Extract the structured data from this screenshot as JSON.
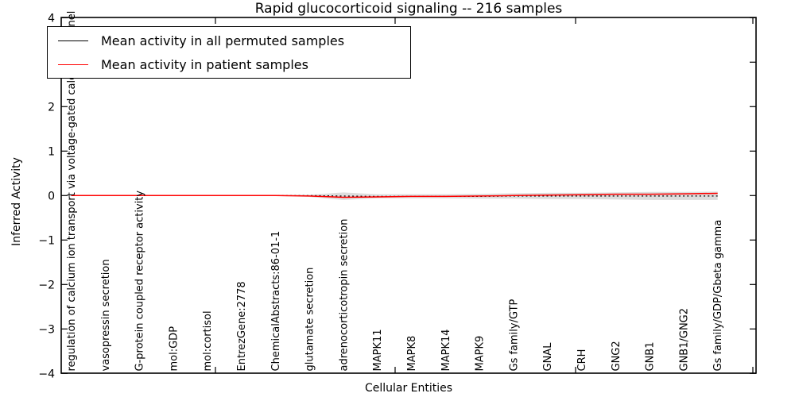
{
  "figure": {
    "title": "Rapid glucocorticoid signaling -- 216 samples",
    "xlabel": "Cellular Entities",
    "ylabel": "Inferred Activity"
  },
  "legend": {
    "position": "upper left",
    "entries": [
      {
        "label": "Mean activity in all permuted samples",
        "color": "#000000"
      },
      {
        "label": "Mean activity in patient samples",
        "color": "#ff0000"
      }
    ]
  },
  "chart_data": {
    "type": "line",
    "title": "Rapid glucocorticoid signaling -- 216 samples",
    "xlabel": "Cellular Entities",
    "ylabel": "Inferred Activity",
    "ylim": [
      -4,
      4
    ],
    "grid": false,
    "legend_position": "upper left",
    "samples_count": "216",
    "yticks": [
      {
        "value": 4,
        "label": "4"
      },
      {
        "value": 3,
        "label": "3"
      },
      {
        "value": 2,
        "label": "2"
      },
      {
        "value": 1,
        "label": "1"
      },
      {
        "value": 0,
        "label": "0"
      },
      {
        "value": -1,
        "label": "−1"
      },
      {
        "value": -2,
        "label": "−2"
      },
      {
        "value": -3,
        "label": "−3"
      },
      {
        "value": -4,
        "label": "−4"
      }
    ],
    "categories": [
      "regulation of calcium ion transport via voltage-gated calcium channel",
      "vasopressin secretion",
      "G-protein coupled receptor activity",
      "mol:GDP",
      "mol:cortisol",
      "EntrezGene:2778",
      "ChemicalAbstracts:86-01-1",
      "glutamate secretion",
      "adrenocorticotropin secretion",
      "MAPK11",
      "MAPK8",
      "MAPK14",
      "MAPK9",
      "Gs family/GTP",
      "GNAL",
      "CRH",
      "GNG2",
      "GNB1",
      "GNB1/GNG2",
      "Gs family/GDP/Gbeta gamma"
    ],
    "series": [
      {
        "name": "Mean activity in all permuted samples",
        "color": "#000000",
        "style": "dotted",
        "values": [
          0,
          0,
          0,
          0,
          0,
          0,
          0,
          0,
          -0.01,
          -0.02,
          -0.02,
          -0.02,
          -0.02,
          -0.01,
          -0.01,
          -0.01,
          -0.01,
          -0.01,
          -0.01,
          -0.01
        ]
      },
      {
        "name": "Mean activity in patient samples",
        "color": "#ff0000",
        "style": "solid",
        "values": [
          0,
          0,
          0,
          0,
          0,
          0,
          0,
          -0.01,
          -0.04,
          -0.03,
          -0.02,
          -0.02,
          -0.01,
          0.0,
          0.01,
          0.02,
          0.03,
          0.03,
          0.04,
          0.05
        ]
      }
    ],
    "band": {
      "name": "permuted-samples-spread",
      "color": "#d9d9d9",
      "upper": [
        0.01,
        0.01,
        0.01,
        0.01,
        0.01,
        0.01,
        0.01,
        0.02,
        0.07,
        0.03,
        0.03,
        0.03,
        0.04,
        0.05,
        0.06,
        0.06,
        0.07,
        0.08,
        0.08,
        0.09
      ],
      "lower": [
        -0.01,
        -0.01,
        -0.01,
        -0.01,
        -0.01,
        -0.01,
        -0.01,
        -0.03,
        -0.1,
        -0.06,
        -0.06,
        -0.06,
        -0.07,
        -0.07,
        -0.08,
        -0.08,
        -0.09,
        -0.1,
        -0.1,
        -0.1
      ]
    }
  }
}
